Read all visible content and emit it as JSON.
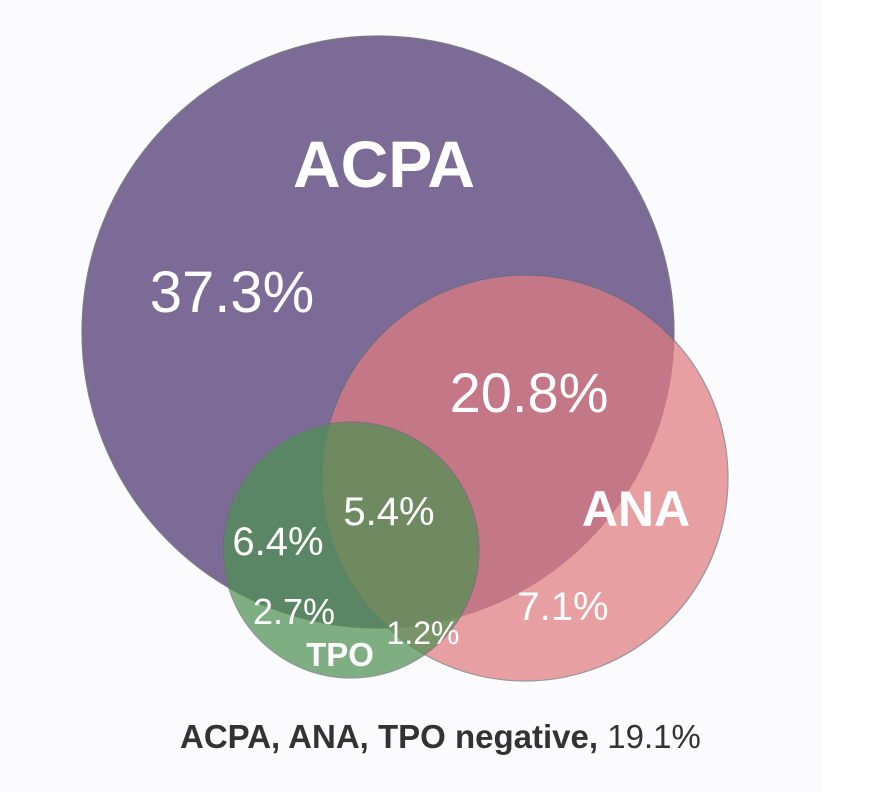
{
  "colors": {
    "acpa": "#6f5c8c",
    "ana": "#e07c80",
    "tpo": "#4f9152",
    "text": "#ffffff",
    "footer": "#333333"
  },
  "sets": {
    "acpa": {
      "label": "ACPA"
    },
    "ana": {
      "label": "ANA"
    },
    "tpo": {
      "label": "TPO"
    }
  },
  "regions": {
    "acpa_only": "37.3%",
    "acpa_ana": "20.8%",
    "acpa_tpo": "6.4%",
    "all_three": "5.4%",
    "tpo_only": "2.7%",
    "ana_tpo": "1.2%",
    "ana_only": "7.1%"
  },
  "footer": {
    "label": "ACPA, ANA, TPO negative,",
    "value": "19.1%"
  }
}
